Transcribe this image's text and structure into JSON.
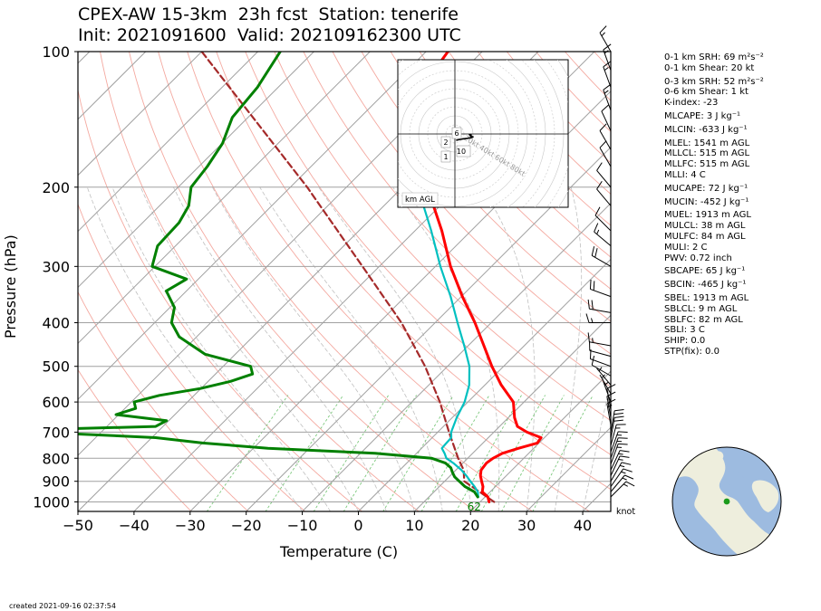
{
  "header": {
    "line1": "CPEX-AW 15-3km  23h fcst  Station: tenerife",
    "line2": "Init: 2021091600  Valid: 202109162300 UTC"
  },
  "footer": {
    "created": "created 2021-09-16 02:37:54"
  },
  "wind_unit": "knot",
  "indices": [
    {
      "label": "0-1 km SRH: 69 m²s⁻²",
      "gap": false
    },
    {
      "label": "0-1 km Shear: 20 kt",
      "gap": false
    },
    {
      "label": "0-3 km SRH: 52 m²s⁻²",
      "gap": true
    },
    {
      "label": "0-6 km Shear: 1 kt",
      "gap": false
    },
    {
      "label": "K-index: -23",
      "gap": false
    },
    {
      "label": "MLCAPE: 3 J kg⁻¹",
      "gap": true
    },
    {
      "label": "MLCIN: -633 J kg⁻¹",
      "gap": true
    },
    {
      "label": "MLEL: 1541 m AGL",
      "gap": true
    },
    {
      "label": "MLLCL: 515 m AGL",
      "gap": false
    },
    {
      "label": "MLLFC: 515 m AGL",
      "gap": false
    },
    {
      "label": "MLLI: 4 C",
      "gap": false
    },
    {
      "label": "MUCAPE: 72 J kg⁻¹",
      "gap": true
    },
    {
      "label": "MUCIN: -452 J kg⁻¹",
      "gap": true
    },
    {
      "label": "MUEL: 1913 m AGL",
      "gap": true
    },
    {
      "label": "MULCL: 38 m AGL",
      "gap": false
    },
    {
      "label": "MULFC: 84 m AGL",
      "gap": false
    },
    {
      "label": "MULI: 2 C",
      "gap": false
    },
    {
      "label": "PWV: 0.72 inch",
      "gap": false
    },
    {
      "label": "SBCAPE: 65 J kg⁻¹",
      "gap": true
    },
    {
      "label": "SBCIN: -465 J kg⁻¹",
      "gap": true
    },
    {
      "label": "SBEL: 1913 m AGL",
      "gap": true
    },
    {
      "label": "SBLCL: 9 m AGL",
      "gap": false
    },
    {
      "label": "SBLFC: 82 m AGL",
      "gap": false
    },
    {
      "label": "SBLI: 3 C",
      "gap": false
    },
    {
      "label": "SHIP: 0.0",
      "gap": false
    },
    {
      "label": "STP(fix): 0.0",
      "gap": false
    }
  ],
  "chart_data": {
    "type": "line",
    "xlabel": "Temperature (C)",
    "ylabel": "Pressure (hPa)",
    "xlim": [
      -50,
      45
    ],
    "ylim": [
      1050,
      100
    ],
    "y_scale": "log",
    "skew": true,
    "x_ticks": [
      -50,
      -40,
      -30,
      -20,
      -10,
      0,
      10,
      20,
      30,
      40
    ],
    "y_ticks": [
      1000,
      900,
      800,
      700,
      600,
      500,
      400,
      300,
      200,
      100
    ],
    "grid": true,
    "surface_label": "62",
    "colors": {
      "temperature": "#ff0000",
      "dewpoint": "#008000",
      "wetbulb": "#00c0c0",
      "parcel": "#a52a2a",
      "dry_adiabats": "#f4a9a0",
      "moist_adiabats": "#c0c0c0",
      "mixing_ratio": "#7cc87c",
      "isotherms": "#a0a0a0",
      "isobars": "#a0a0a0"
    },
    "series": [
      {
        "key": "temperature",
        "points": [
          [
            1000,
            21.6
          ],
          [
            975,
            20.5
          ],
          [
            950,
            18.6
          ],
          [
            925,
            17.8
          ],
          [
            900,
            16.6
          ],
          [
            875,
            15.4
          ],
          [
            850,
            14.5
          ],
          [
            820,
            14.2
          ],
          [
            800,
            14.5
          ],
          [
            780,
            15.3
          ],
          [
            760,
            17.3
          ],
          [
            740,
            19.7
          ],
          [
            720,
            19.4
          ],
          [
            700,
            15.9
          ],
          [
            680,
            13.2
          ],
          [
            650,
            11.1
          ],
          [
            600,
            8.1
          ],
          [
            550,
            2.9
          ],
          [
            500,
            -2.1
          ],
          [
            450,
            -7.2
          ],
          [
            400,
            -12.9
          ],
          [
            350,
            -19.8
          ],
          [
            300,
            -27.3
          ],
          [
            250,
            -35.2
          ],
          [
            200,
            -45.6
          ],
          [
            175,
            -51.6
          ],
          [
            150,
            -58.1
          ],
          [
            125,
            -63.9
          ],
          [
            100,
            -66.1
          ]
        ]
      },
      {
        "key": "wetbulb",
        "points": [
          [
            975,
            18.8
          ],
          [
            950,
            17.8
          ],
          [
            925,
            16.3
          ],
          [
            900,
            14.6
          ],
          [
            875,
            12.9
          ],
          [
            850,
            11.0
          ],
          [
            820,
            8.3
          ],
          [
            800,
            6.2
          ],
          [
            780,
            5.0
          ],
          [
            760,
            3.6
          ],
          [
            740,
            3.5
          ],
          [
            720,
            3.4
          ],
          [
            700,
            2.4
          ],
          [
            650,
            0.8
          ],
          [
            600,
            -0.6
          ],
          [
            550,
            -2.8
          ],
          [
            500,
            -6.1
          ],
          [
            450,
            -10.7
          ],
          [
            400,
            -16.0
          ],
          [
            350,
            -21.9
          ],
          [
            300,
            -29.1
          ],
          [
            250,
            -37.1
          ],
          [
            200,
            -47.3
          ],
          [
            175,
            -52.6
          ],
          [
            150,
            -59.5
          ],
          [
            125,
            -64.4
          ],
          [
            100,
            -66.1
          ]
        ]
      },
      {
        "key": "dewpoint",
        "points": [
          [
            975,
            18.7
          ],
          [
            950,
            17.2
          ],
          [
            925,
            14.6
          ],
          [
            900,
            12.6
          ],
          [
            880,
            11.0
          ],
          [
            860,
            9.8
          ],
          [
            840,
            8.7
          ],
          [
            820,
            6.9
          ],
          [
            800,
            3.6
          ],
          [
            780,
            -7.4
          ],
          [
            760,
            -27.4
          ],
          [
            740,
            -40.0
          ],
          [
            720,
            -49.3
          ],
          [
            700,
            -71.2
          ],
          [
            690,
            -69.8
          ],
          [
            680,
            -51.3
          ],
          [
            660,
            -50.4
          ],
          [
            640,
            -60.5
          ],
          [
            620,
            -58.1
          ],
          [
            600,
            -59.5
          ],
          [
            580,
            -56.2
          ],
          [
            560,
            -50.1
          ],
          [
            540,
            -46.0
          ],
          [
            520,
            -43.4
          ],
          [
            500,
            -45.1
          ],
          [
            470,
            -55.4
          ],
          [
            430,
            -63.1
          ],
          [
            400,
            -67.0
          ],
          [
            370,
            -69.2
          ],
          [
            340,
            -73.6
          ],
          [
            320,
            -72.1
          ],
          [
            300,
            -80.5
          ],
          [
            270,
            -83.2
          ],
          [
            240,
            -83.5
          ],
          [
            220,
            -84.8
          ],
          [
            200,
            -87.7
          ],
          [
            180,
            -88.5
          ],
          [
            160,
            -89.9
          ],
          [
            140,
            -92.8
          ],
          [
            120,
            -93.7
          ],
          [
            100,
            -96.0
          ]
        ]
      },
      {
        "key": "parcel",
        "points": [
          [
            1000,
            22.5
          ],
          [
            900,
            13.5
          ],
          [
            850,
            11.4
          ],
          [
            800,
            8.3
          ],
          [
            700,
            2.0
          ],
          [
            600,
            -5.0
          ],
          [
            500,
            -14.0
          ],
          [
            400,
            -26.0
          ],
          [
            300,
            -43.0
          ],
          [
            200,
            -67.0
          ],
          [
            100,
            -110.0
          ]
        ]
      }
    ],
    "hodograph": {
      "ring_speeds_kt": [
        20,
        40,
        60,
        80
      ],
      "ring_labels": [
        "20kt",
        "40kt",
        "60kt",
        "80kt"
      ],
      "height_labels": [
        "1",
        "2",
        "6",
        "10"
      ],
      "legend": "km AGL"
    },
    "wind_barbs": [
      {
        "p": 975,
        "spd": 15,
        "dir": 45
      },
      {
        "p": 950,
        "spd": 15,
        "dir": 40
      },
      {
        "p": 925,
        "spd": 15,
        "dir": 35
      },
      {
        "p": 900,
        "spd": 15,
        "dir": 30
      },
      {
        "p": 875,
        "spd": 15,
        "dir": 25
      },
      {
        "p": 850,
        "spd": 15,
        "dir": 25
      },
      {
        "p": 825,
        "spd": 15,
        "dir": 20
      },
      {
        "p": 800,
        "spd": 15,
        "dir": 20
      },
      {
        "p": 775,
        "spd": 15,
        "dir": 20
      },
      {
        "p": 750,
        "spd": 15,
        "dir": 15
      },
      {
        "p": 725,
        "spd": 20,
        "dir": 10
      },
      {
        "p": 700,
        "spd": 20,
        "dir": 10
      },
      {
        "p": 675,
        "spd": 15,
        "dir": 350
      },
      {
        "p": 650,
        "spd": 10,
        "dir": 350
      },
      {
        "p": 625,
        "spd": 10,
        "dir": 350
      },
      {
        "p": 600,
        "spd": 5,
        "dir": 340
      },
      {
        "p": 575,
        "spd": 5,
        "dir": 330
      },
      {
        "p": 550,
        "spd": 5,
        "dir": 320
      },
      {
        "p": 525,
        "spd": 10,
        "dir": 300
      },
      {
        "p": 500,
        "spd": 10,
        "dir": 290
      },
      {
        "p": 475,
        "spd": 10,
        "dir": 285
      },
      {
        "p": 450,
        "spd": 15,
        "dir": 280
      },
      {
        "p": 400,
        "spd": 15,
        "dir": 270
      },
      {
        "p": 380,
        "spd": 20,
        "dir": 280
      },
      {
        "p": 350,
        "spd": 20,
        "dir": 290
      },
      {
        "p": 300,
        "spd": 20,
        "dir": 300
      },
      {
        "p": 270,
        "spd": 15,
        "dir": 310
      },
      {
        "p": 250,
        "spd": 10,
        "dir": 315
      },
      {
        "p": 220,
        "spd": 10,
        "dir": 320
      },
      {
        "p": 200,
        "spd": 10,
        "dir": 320
      },
      {
        "p": 180,
        "spd": 10,
        "dir": 330
      },
      {
        "p": 165,
        "spd": 10,
        "dir": 330
      },
      {
        "p": 150,
        "spd": 10,
        "dir": 335
      },
      {
        "p": 135,
        "spd": 15,
        "dir": 340
      },
      {
        "p": 120,
        "spd": 15,
        "dir": 340
      },
      {
        "p": 110,
        "spd": 15,
        "dir": 340
      },
      {
        "p": 100,
        "spd": 15,
        "dir": 330
      }
    ]
  }
}
